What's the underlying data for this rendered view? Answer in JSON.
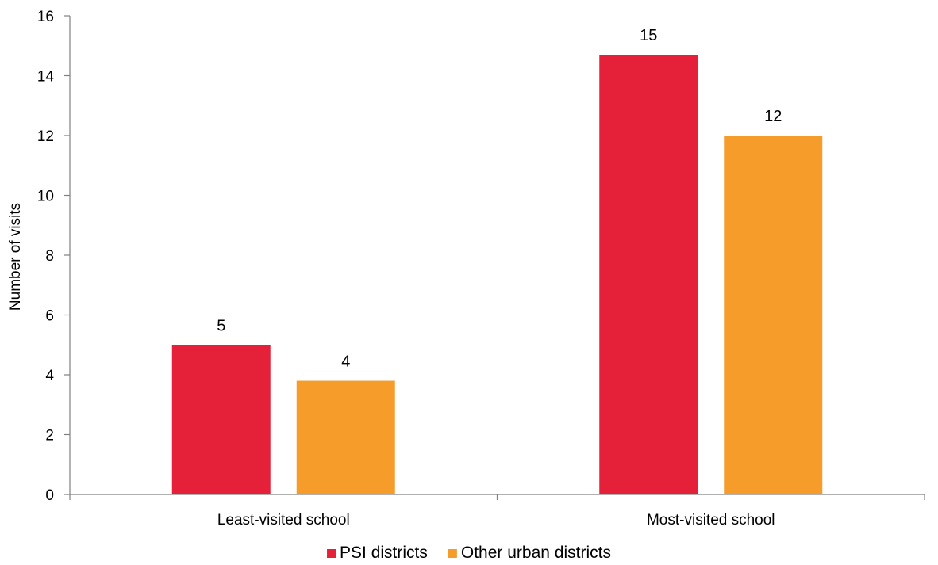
{
  "chart_data": {
    "type": "bar",
    "title": "",
    "xlabel": "",
    "ylabel": "Number of visits",
    "categories": [
      "Least-visited school",
      "Most-visited school"
    ],
    "series": [
      {
        "name": "PSI districts",
        "values": [
          5.0,
          14.7
        ],
        "labels": [
          "5",
          "15"
        ],
        "color": "#e5213a"
      },
      {
        "name": "Other urban districts",
        "values": [
          3.8,
          12.0
        ],
        "labels": [
          "4",
          "12"
        ],
        "color": "#f59c2b"
      }
    ],
    "ylim": [
      0,
      16
    ],
    "yticks": [
      0,
      2,
      4,
      6,
      8,
      10,
      12,
      14,
      16
    ],
    "grid": false,
    "legend_position": "bottom"
  }
}
